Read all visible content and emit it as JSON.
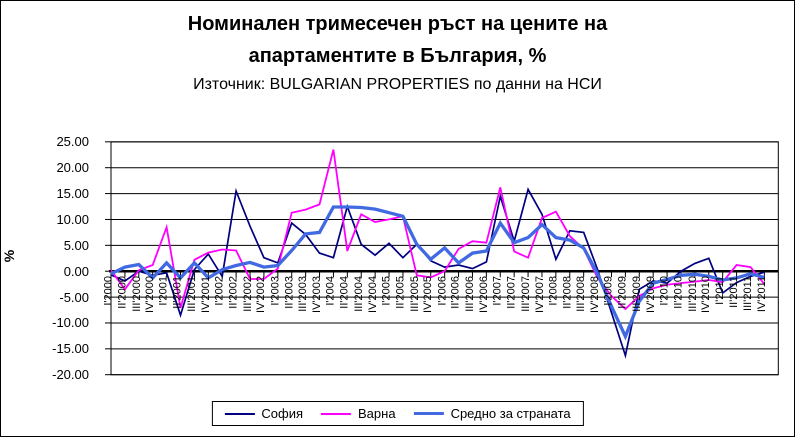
{
  "chart_data": {
    "type": "line",
    "title_line1": "Номинален тримесечен ръст на цените на",
    "title_line2": "апартаментите в България, %",
    "subtitle": "Източник: BULGARIAN PROPERTIES по данни на НСИ",
    "ylabel": "%",
    "ylim": [
      -20,
      25
    ],
    "ytick_step": 5,
    "grid": true,
    "legend_position": "bottom",
    "yticks": [
      {
        "label": "25.00",
        "value": 25
      },
      {
        "label": "20.00",
        "value": 20
      },
      {
        "label": "15.00",
        "value": 15
      },
      {
        "label": "10.00",
        "value": 10
      },
      {
        "label": "5.00",
        "value": 5
      },
      {
        "label": "0.00",
        "value": 0
      },
      {
        "label": "-5.00",
        "value": -5
      },
      {
        "label": "-10.00",
        "value": -10
      },
      {
        "label": "-15.00",
        "value": -15
      },
      {
        "label": "-20.00",
        "value": -20
      }
    ],
    "categories": [
      "I'2000",
      "II'2000",
      "III'2000",
      "IV'2000",
      "I'2001",
      "II'2001",
      "III'2001",
      "IV'2001",
      "I'2002",
      "II'2002",
      "III'2002",
      "IV'2002",
      "I'2003",
      "II'2003",
      "III'2003",
      "IV'2003",
      "I'2004",
      "II'2004",
      "III'2004",
      "IV'2004",
      "I'2005",
      "II'2005",
      "III'2005",
      "IV'2005",
      "I'2006",
      "II'2006",
      "III'2006",
      "IV'2006",
      "I'2007",
      "II'2007",
      "III'2007",
      "IV'2007",
      "I'2008",
      "II'2008",
      "III'2008",
      "IV'2008",
      "I'2009",
      "II'2009",
      "III'2009",
      "IV'2009",
      "I'2010",
      "II'2010",
      "III'2010",
      "IV'2010",
      "I'2011",
      "II'2011",
      "III'2011",
      "IV'2011"
    ],
    "series": [
      {
        "name": "София",
        "color": "#000080",
        "stroke_width": 1.7,
        "values": [
          -0.7,
          -1.9,
          0.0,
          -0.8,
          -0.3,
          -8.5,
          0.3,
          3.3,
          -1.0,
          15.5,
          8.7,
          2.6,
          1.6,
          9.3,
          7.1,
          3.5,
          2.6,
          12.5,
          5.2,
          3.1,
          5.4,
          2.6,
          5.2,
          2.0,
          0.8,
          1.2,
          0.5,
          1.8,
          14.5,
          5.8,
          15.8,
          11.0,
          2.3,
          7.8,
          7.5,
          0.3,
          -8.0,
          -16.3,
          -3.5,
          -1.9,
          -2.3,
          0.0,
          1.5,
          2.5,
          -4.2,
          -2.2,
          -1.0,
          -0.2
        ]
      },
      {
        "name": "Варна",
        "color": "#FF00FF",
        "stroke_width": 1.8,
        "values": [
          0.2,
          -3.5,
          0.2,
          1.2,
          8.5,
          -7.1,
          2.2,
          3.6,
          4.2,
          4.0,
          -1.5,
          -1.5,
          0.5,
          11.3,
          11.9,
          12.9,
          23.5,
          3.9,
          11.0,
          9.5,
          10.0,
          10.6,
          -0.8,
          -1.2,
          0.0,
          4.3,
          5.8,
          5.5,
          16.2,
          3.8,
          2.6,
          10.3,
          11.5,
          6.8,
          4.3,
          -1.3,
          -4.8,
          -7.3,
          -4.8,
          -3.3,
          -2.6,
          -2.3,
          -2.0,
          -1.7,
          -2.1,
          1.2,
          0.8,
          -2.5
        ]
      },
      {
        "name": "Средно за страната",
        "color": "#4169E1",
        "stroke_width": 3.3,
        "values": [
          -0.5,
          0.8,
          1.3,
          -1.3,
          1.6,
          -1.3,
          1.6,
          -1.3,
          0.3,
          1.1,
          1.7,
          0.8,
          1.1,
          4.0,
          7.2,
          7.5,
          12.4,
          12.4,
          12.3,
          12.0,
          11.3,
          10.6,
          5.2,
          2.3,
          4.5,
          1.6,
          3.5,
          3.9,
          9.3,
          5.5,
          6.5,
          9.0,
          6.5,
          6.0,
          4.5,
          -0.5,
          -6.8,
          -12.6,
          -5.8,
          -2.3,
          -1.6,
          -0.8,
          -0.6,
          -1.0,
          -1.7,
          -1.3,
          -0.5,
          -1.2
        ]
      }
    ]
  }
}
